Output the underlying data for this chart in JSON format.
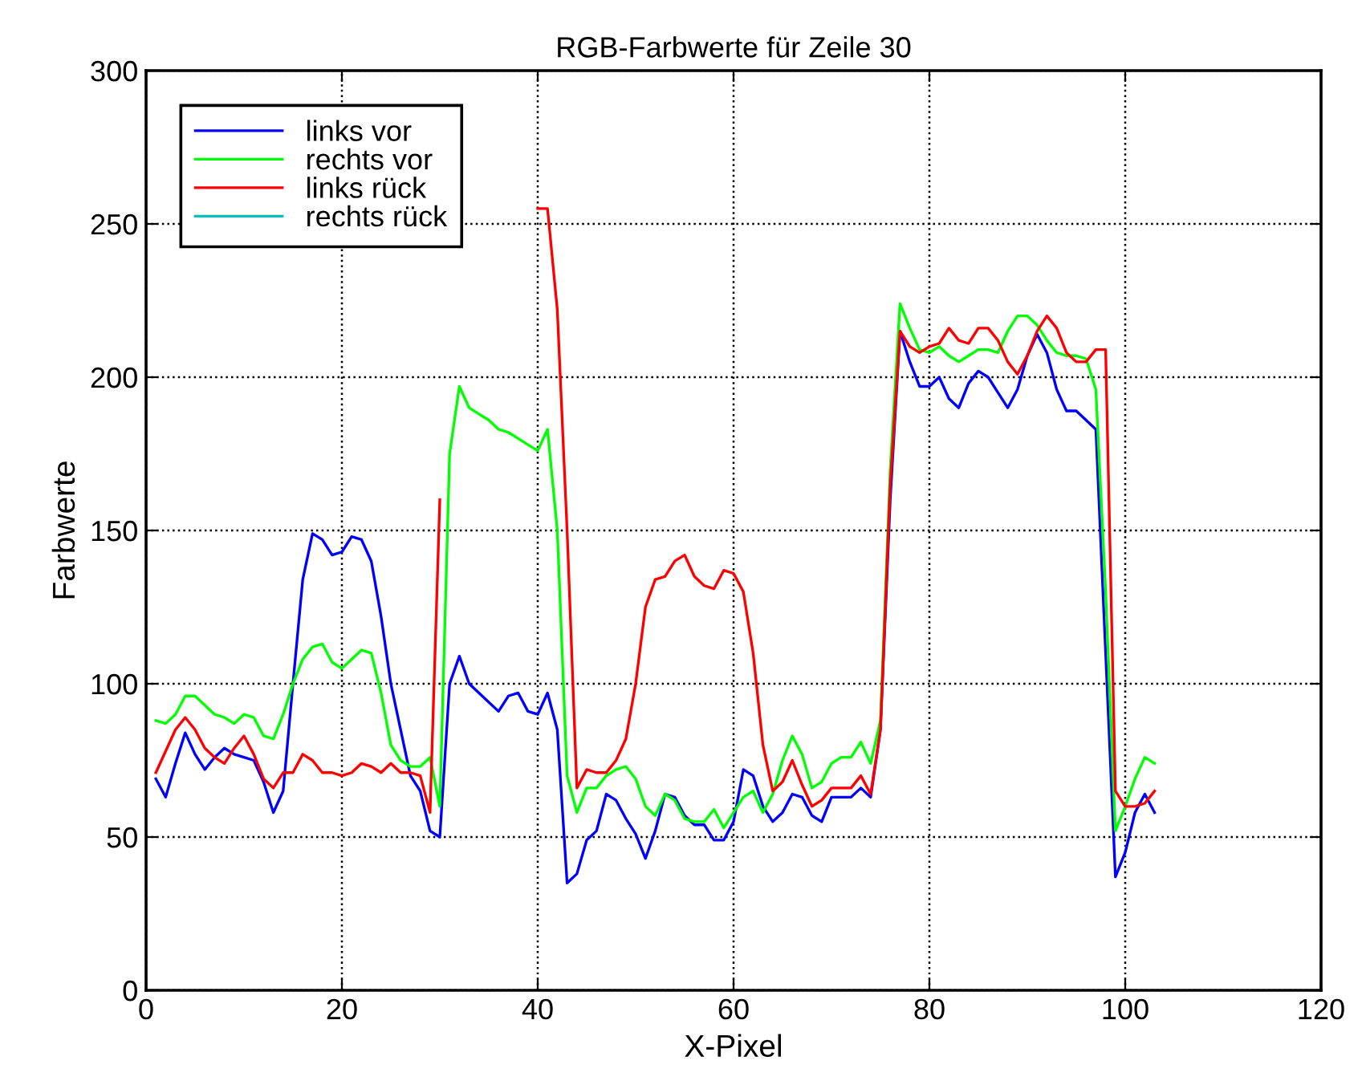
{
  "chart_data": {
    "type": "line",
    "title": "RGB-Farbwerte für Zeile 30",
    "xlabel": "X-Pixel",
    "ylabel": "Farbwerte",
    "x": [
      1,
      2,
      3,
      4,
      5,
      6,
      7,
      8,
      9,
      10,
      11,
      12,
      13,
      14,
      15,
      16,
      17,
      18,
      19,
      20,
      21,
      22,
      23,
      24,
      25,
      26,
      27,
      28,
      29,
      30,
      31,
      32,
      33,
      34,
      35,
      36,
      37,
      38,
      39,
      40,
      41,
      42,
      43,
      44,
      45,
      46,
      47,
      48,
      49,
      50,
      51,
      52,
      53,
      54,
      55,
      56,
      57,
      58,
      59,
      60,
      61,
      62,
      63,
      64,
      65,
      66,
      67,
      68,
      69,
      70,
      71,
      72,
      73,
      74,
      75,
      76,
      77,
      78,
      79,
      80,
      81,
      82,
      83,
      84,
      85,
      86,
      87,
      88,
      89,
      90,
      91,
      92,
      93,
      94,
      95,
      96,
      97,
      98,
      99,
      100,
      101,
      102,
      103
    ],
    "series": [
      {
        "name": "links vor",
        "color": "#0000ff",
        "values": [
          69,
          63,
          74,
          84,
          77,
          72,
          76,
          79,
          77,
          76,
          75,
          68,
          58,
          65,
          100,
          134,
          149,
          147,
          142,
          143,
          148,
          147,
          140,
          122,
          100,
          85,
          70,
          65,
          52,
          50,
          100,
          109,
          100,
          97,
          94,
          91,
          96,
          97,
          91,
          90,
          97,
          85,
          35,
          38,
          49,
          52,
          64,
          62,
          56,
          51,
          43,
          52,
          64,
          63,
          57,
          54,
          54,
          49,
          49,
          55,
          72,
          70,
          60,
          55,
          58,
          64,
          63,
          57,
          55,
          63,
          63,
          63,
          66,
          63,
          85,
          160,
          215,
          205,
          197,
          197,
          200,
          193,
          190,
          198,
          202,
          200,
          195,
          190,
          196,
          207,
          214,
          208,
          196,
          189,
          189,
          186,
          183,
          110,
          37,
          45,
          58,
          64,
          58
        ]
      },
      {
        "name": "rechts vor",
        "color": "#00ff00",
        "values": [
          88,
          87,
          90,
          96,
          96,
          93,
          90,
          89,
          87,
          90,
          89,
          83,
          82,
          90,
          100,
          108,
          112,
          113,
          107,
          105,
          108,
          111,
          110,
          97,
          80,
          75,
          73,
          73,
          76,
          60,
          175,
          197,
          190,
          188,
          186,
          183,
          182,
          180,
          178,
          176,
          183,
          150,
          70,
          58,
          66,
          66,
          70,
          72,
          73,
          69,
          60,
          57,
          64,
          62,
          56,
          55,
          55,
          59,
          53,
          58,
          63,
          65,
          58,
          64,
          75,
          83,
          77,
          66,
          68,
          74,
          76,
          76,
          81,
          74,
          88,
          170,
          224,
          216,
          209,
          208,
          210,
          207,
          205,
          207,
          209,
          209,
          208,
          215,
          220,
          220,
          217,
          212,
          208,
          207,
          207,
          206,
          196,
          130,
          52,
          60,
          69,
          76,
          74
        ]
      },
      {
        "name": "links rück",
        "color": "#ff0000",
        "values": [
          71,
          78,
          85,
          89,
          85,
          79,
          76,
          74,
          79,
          83,
          77,
          69,
          66,
          71,
          71,
          77,
          75,
          71,
          71,
          70,
          71,
          74,
          73,
          71,
          74,
          71,
          71,
          70,
          58,
          160,
          null,
          null,
          null,
          null,
          null,
          null,
          null,
          null,
          null,
          255,
          255,
          222,
          150,
          66,
          72,
          71,
          71,
          75,
          82,
          100,
          125,
          134,
          135,
          140,
          142,
          135,
          132,
          131,
          137,
          136,
          130,
          110,
          80,
          65,
          68,
          75,
          67,
          60,
          62,
          66,
          66,
          66,
          70,
          64,
          85,
          165,
          215,
          210,
          208,
          210,
          211,
          216,
          212,
          211,
          216,
          216,
          212,
          205,
          201,
          207,
          215,
          220,
          216,
          208,
          205,
          205,
          209,
          209,
          65,
          60,
          60,
          61,
          65
        ]
      },
      {
        "name": "rechts rück",
        "color": "#00c0c0",
        "values": [
          null,
          null,
          null,
          null,
          null,
          null,
          null,
          null,
          null,
          null,
          null,
          null,
          null,
          null,
          null,
          null,
          null,
          null,
          null,
          null,
          null,
          null,
          null,
          null,
          null,
          null,
          null,
          null,
          null,
          null,
          null,
          null,
          null,
          null,
          null,
          null,
          null,
          null,
          null,
          null,
          null,
          null,
          null,
          null,
          null,
          null,
          null,
          null,
          null,
          null,
          null,
          null,
          null,
          null,
          null,
          null,
          null,
          null,
          null,
          null,
          null,
          null,
          null,
          null,
          null,
          null,
          null,
          null,
          null,
          null,
          null,
          null,
          null,
          null,
          null,
          null,
          null,
          null,
          null,
          null,
          null,
          null,
          null,
          null,
          null,
          null,
          null,
          null,
          null,
          null,
          null,
          null,
          null,
          null,
          null,
          null,
          null,
          null,
          null,
          null,
          null,
          null,
          null
        ]
      }
    ],
    "xlim": [
      0,
      120
    ],
    "xticks": [
      0,
      20,
      40,
      60,
      80,
      100,
      120
    ],
    "ylim": [
      0,
      300
    ],
    "yticks": [
      0,
      50,
      100,
      150,
      200,
      250,
      300
    ],
    "grid": true,
    "legend": "top left",
    "line_style": "solid",
    "marker": "none"
  }
}
